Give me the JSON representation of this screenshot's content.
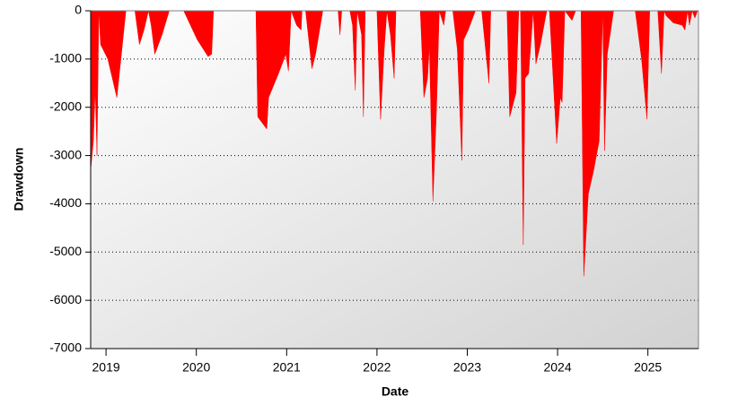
{
  "chart_data": {
    "type": "area",
    "xlabel": "Date",
    "ylabel": "Drawdown",
    "color": "#ff0000",
    "grid": true,
    "xlim": [
      2018.83,
      2025.56
    ],
    "ylim": [
      -7000,
      0
    ],
    "xticks": [
      2019,
      2020,
      2021,
      2022,
      2023,
      2024,
      2025
    ],
    "yticks": [
      0,
      -1000,
      -2000,
      -3000,
      -4000,
      -5000,
      -6000,
      -7000
    ],
    "x": [
      2018.83,
      2018.86,
      2018.88,
      2018.9,
      2018.92,
      2018.94,
      2019.02,
      2019.12,
      2019.22,
      2019.32,
      2019.37,
      2019.42,
      2019.47,
      2019.5,
      2019.54,
      2019.62,
      2019.7,
      2019.86,
      2019.91,
      2020.01,
      2020.13,
      2020.17,
      2020.19,
      2020.66,
      2020.68,
      2020.78,
      2020.8,
      2020.91,
      2020.99,
      2021.02,
      2021.05,
      2021.11,
      2021.16,
      2021.17,
      2021.21,
      2021.28,
      2021.32,
      2021.4,
      2021.57,
      2021.59,
      2021.61,
      2021.7,
      2021.73,
      2021.76,
      2021.78,
      2021.83,
      2021.85,
      2021.87,
      2022.0,
      2022.04,
      2022.08,
      2022.11,
      2022.15,
      2022.19,
      2022.21,
      2022.48,
      2022.52,
      2022.56,
      2022.58,
      2022.62,
      2022.66,
      2022.69,
      2022.74,
      2022.76,
      2022.84,
      2022.89,
      2022.94,
      2022.96,
      2023.01,
      2023.09,
      2023.16,
      2023.24,
      2023.26,
      2023.44,
      2023.47,
      2023.54,
      2023.57,
      2023.59,
      2023.62,
      2023.64,
      2023.68,
      2023.73,
      2023.76,
      2023.81,
      2023.88,
      2023.91,
      2023.99,
      2024.03,
      2024.05,
      2024.08,
      2024.16,
      2024.2,
      2024.26,
      2024.29,
      2024.34,
      2024.4,
      2024.46,
      2024.5,
      2024.52,
      2024.55,
      2024.62,
      2024.86,
      2024.93,
      2024.99,
      2025.02,
      2025.11,
      2025.15,
      2025.18,
      2025.2,
      2025.28,
      2025.38,
      2025.41,
      2025.44,
      2025.46,
      2025.49,
      2025.52,
      2025.55
    ],
    "values": [
      -3300,
      -2700,
      -1600,
      -3000,
      0,
      -700,
      -1000,
      -1800,
      0,
      0,
      -700,
      -400,
      0,
      -300,
      -900,
      -500,
      0,
      0,
      -200,
      -600,
      -950,
      -900,
      0,
      0,
      -2200,
      -2450,
      -1800,
      -1300,
      -900,
      -1250,
      0,
      -300,
      -400,
      0,
      0,
      -1200,
      -900,
      0,
      0,
      -500,
      0,
      0,
      -300,
      -1650,
      0,
      -500,
      -2200,
      0,
      0,
      -2250,
      -800,
      0,
      -500,
      -1400,
      0,
      0,
      -1800,
      -1400,
      -700,
      -3950,
      -2000,
      0,
      -300,
      0,
      0,
      -800,
      -3100,
      -600,
      -400,
      0,
      0,
      -1500,
      0,
      0,
      -2200,
      -1700,
      0,
      0,
      -4850,
      -1400,
      -1300,
      0,
      -1100,
      -700,
      0,
      0,
      -2750,
      -1800,
      -1900,
      0,
      -200,
      0,
      0,
      -5500,
      -3800,
      -3300,
      -2700,
      0,
      -2900,
      -900,
      0,
      0,
      -1000,
      -2250,
      0,
      0,
      -1300,
      0,
      -100,
      -250,
      -300,
      -400,
      0,
      -300,
      0,
      -150,
      0
    ]
  }
}
